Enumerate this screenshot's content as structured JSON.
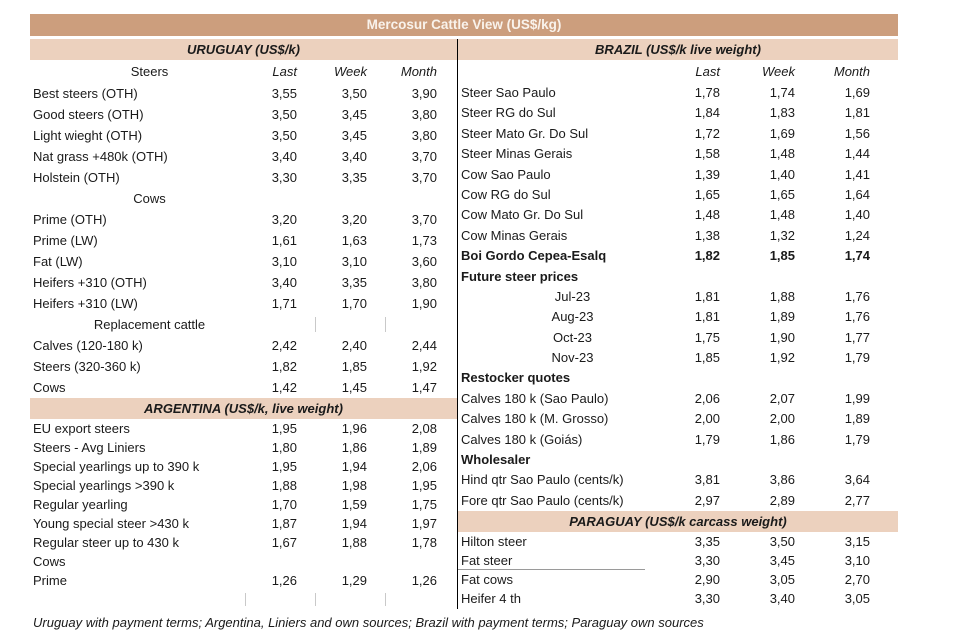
{
  "title": "Mercosur Cattle View (US$/kg)",
  "columns": [
    "Last",
    "Week",
    "Month"
  ],
  "colors": {
    "title_bar": "#CC9E7D",
    "section_bar": "#ECD1BE",
    "title_text": "#F9F3EC",
    "text": "#1A1A1A"
  },
  "footer": "Uruguay with payment terms; Argentina, Liniers and own sources; Brazil with payment terms; Paraguay own sources",
  "left": {
    "uruguay": {
      "header": "URUGUAY (US$/k)",
      "col_label": "Steers",
      "rows": [
        {
          "label": "Best steers (OTH)",
          "values": [
            "3,55",
            "3,50",
            "3,90"
          ],
          "style": "normal"
        },
        {
          "label": "Good steers (OTH)",
          "values": [
            "3,50",
            "3,45",
            "3,80"
          ],
          "style": "normal"
        },
        {
          "label": "Light wieght (OTH)",
          "values": [
            "3,50",
            "3,45",
            "3,80"
          ],
          "style": "normal"
        },
        {
          "label": "Nat grass +480k (OTH)",
          "values": [
            "3,40",
            "3,40",
            "3,70"
          ],
          "style": "normal"
        },
        {
          "label": "Holstein (OTH)",
          "values": [
            "3,30",
            "3,35",
            "3,70"
          ],
          "style": "normal"
        },
        {
          "label": "Cows",
          "values": [
            "",
            "",
            ""
          ],
          "style": "center"
        },
        {
          "label": "Prime (OTH)",
          "values": [
            "3,20",
            "3,20",
            "3,70"
          ],
          "style": "normal"
        },
        {
          "label": "Prime (LW)",
          "values": [
            "1,61",
            "1,63",
            "1,73"
          ],
          "style": "normal"
        },
        {
          "label": "Fat (LW)",
          "values": [
            "3,10",
            "3,10",
            "3,60"
          ],
          "style": "normal"
        },
        {
          "label": "Heifers +310 (OTH)",
          "values": [
            "3,40",
            "3,35",
            "3,80"
          ],
          "style": "normal"
        },
        {
          "label": "Heifers +310 (LW)",
          "values": [
            "1,71",
            "1,70",
            "1,90"
          ],
          "style": "normal"
        },
        {
          "label": "Replacement cattle",
          "values": [
            "",
            "",
            ""
          ],
          "style": "center",
          "ticks": [
            1,
            2
          ]
        },
        {
          "label": "Calves (120-180 k)",
          "values": [
            "2,42",
            "2,40",
            "2,44"
          ],
          "style": "normal"
        },
        {
          "label": "Steers (320-360 k)",
          "values": [
            "1,82",
            "1,85",
            "1,92"
          ],
          "style": "normal"
        },
        {
          "label": "Cows",
          "values": [
            "1,42",
            "1,45",
            "1,47"
          ],
          "style": "normal"
        }
      ]
    },
    "argentina": {
      "header": "ARGENTINA (US$/k, live weight)",
      "rows": [
        {
          "label": "EU export steers",
          "values": [
            "1,95",
            "1,96",
            "2,08"
          ],
          "style": "normal"
        },
        {
          "label": "Steers - Avg Liniers",
          "values": [
            "1,80",
            "1,86",
            "1,89"
          ],
          "style": "normal"
        },
        {
          "label": "Special yearlings up to 390 k",
          "values": [
            "1,95",
            "1,94",
            "2,06"
          ],
          "style": "normal"
        },
        {
          "label": "Special yearlings >390 k",
          "values": [
            "1,88",
            "1,98",
            "1,95"
          ],
          "style": "normal"
        },
        {
          "label": "Regular yearling",
          "values": [
            "1,70",
            "1,59",
            "1,75"
          ],
          "style": "normal"
        },
        {
          "label": "Young special steer >430 k",
          "values": [
            "1,87",
            "1,94",
            "1,97"
          ],
          "style": "normal"
        },
        {
          "label": "Regular steer up to 430 k",
          "values": [
            "1,67",
            "1,88",
            "1,78"
          ],
          "style": "normal"
        },
        {
          "label": "Cows",
          "values": [
            "",
            "",
            ""
          ],
          "style": "normal"
        },
        {
          "label": "Prime",
          "values": [
            "1,26",
            "1,29",
            "1,26"
          ],
          "style": "normal"
        },
        {
          "label": "",
          "values": [
            "",
            "",
            ""
          ],
          "style": "normal",
          "ticks": [
            0,
            1,
            2
          ]
        }
      ]
    }
  },
  "right": {
    "brazil": {
      "header": "BRAZIL (US$/k live weight)",
      "col_label": "",
      "rows": [
        {
          "label": "Steer Sao Paulo",
          "values": [
            "1,78",
            "1,74",
            "1,69"
          ],
          "style": "normal"
        },
        {
          "label": "Steer RG do Sul",
          "values": [
            "1,84",
            "1,83",
            "1,81"
          ],
          "style": "normal"
        },
        {
          "label": "Steer Mato Gr. Do Sul",
          "values": [
            "1,72",
            "1,69",
            "1,56"
          ],
          "style": "normal"
        },
        {
          "label": "Steer Minas Gerais",
          "values": [
            "1,58",
            "1,48",
            "1,44"
          ],
          "style": "normal"
        },
        {
          "label": "Cow Sao Paulo",
          "values": [
            "1,39",
            "1,40",
            "1,41"
          ],
          "style": "normal"
        },
        {
          "label": "Cow RG do Sul",
          "values": [
            "1,65",
            "1,65",
            "1,64"
          ],
          "style": "normal"
        },
        {
          "label": "Cow Mato Gr. Do Sul",
          "values": [
            "1,48",
            "1,48",
            "1,40"
          ],
          "style": "normal"
        },
        {
          "label": "Cow Minas Gerais",
          "values": [
            "1,38",
            "1,32",
            "1,24"
          ],
          "style": "normal"
        },
        {
          "label": "Boi Gordo Cepea-Esalq",
          "values": [
            "1,82",
            "1,85",
            "1,74"
          ],
          "style": "bold"
        },
        {
          "label": "Future steer prices",
          "values": [
            "",
            "",
            ""
          ],
          "style": "boldlabel"
        },
        {
          "label": "Jul-23",
          "values": [
            "1,81",
            "1,88",
            "1,76"
          ],
          "style": "center"
        },
        {
          "label": "Aug-23",
          "values": [
            "1,81",
            "1,89",
            "1,76"
          ],
          "style": "center"
        },
        {
          "label": "Oct-23",
          "values": [
            "1,75",
            "1,90",
            "1,77"
          ],
          "style": "center"
        },
        {
          "label": "Nov-23",
          "values": [
            "1,85",
            "1,92",
            "1,79"
          ],
          "style": "center"
        },
        {
          "label": "Restocker quotes",
          "values": [
            "",
            "",
            ""
          ],
          "style": "boldlabel"
        },
        {
          "label": "Calves 180 k (Sao Paulo)",
          "values": [
            "2,06",
            "2,07",
            "1,99"
          ],
          "style": "normal"
        },
        {
          "label": "Calves 180 k (M. Grosso)",
          "values": [
            "2,00",
            "2,00",
            "1,89"
          ],
          "style": "normal"
        },
        {
          "label": "Calves 180 k (Goiás)",
          "values": [
            "1,79",
            "1,86",
            "1,79"
          ],
          "style": "normal"
        },
        {
          "label": "Wholesaler",
          "values": [
            "",
            "",
            ""
          ],
          "style": "boldlabel"
        },
        {
          "label": "Hind qtr Sao Paulo (cents/k)",
          "values": [
            "3,81",
            "3,86",
            "3,64"
          ],
          "style": "normal"
        },
        {
          "label": "Fore qtr Sao Paulo (cents/k)",
          "values": [
            "2,97",
            "2,89",
            "2,77"
          ],
          "style": "normal"
        }
      ]
    },
    "paraguay": {
      "header": "PARAGUAY (US$/k carcass weight)",
      "rows": [
        {
          "label": "Hilton steer",
          "values": [
            "3,35",
            "3,50",
            "3,15"
          ],
          "style": "normal"
        },
        {
          "label": "Fat steer",
          "values": [
            "3,30",
            "3,45",
            "3,10"
          ],
          "style": "normal",
          "underline": true
        },
        {
          "label": "Fat cows",
          "values": [
            "2,90",
            "3,05",
            "2,70"
          ],
          "style": "normal"
        },
        {
          "label": "Heifer 4 th",
          "values": [
            "3,30",
            "3,40",
            "3,05"
          ],
          "style": "normal"
        }
      ]
    }
  }
}
